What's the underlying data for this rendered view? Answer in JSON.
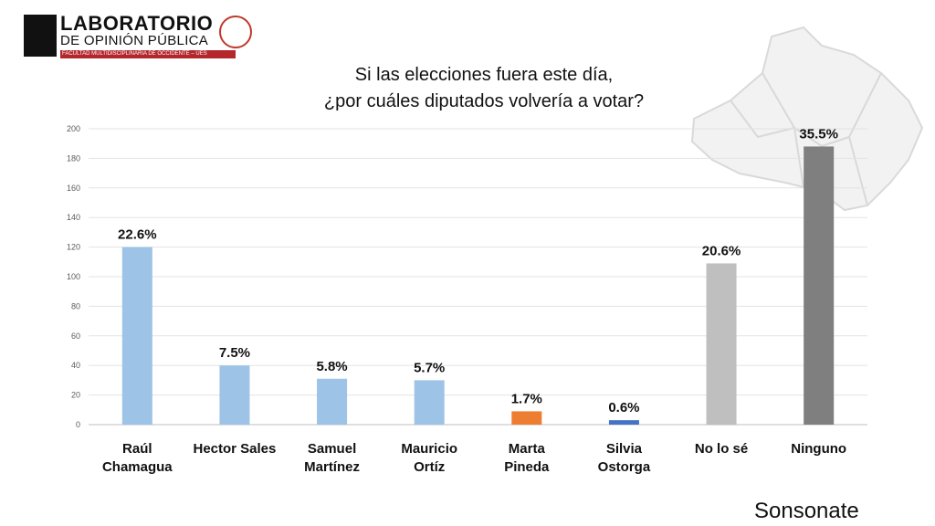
{
  "logo": {
    "title": "LABORATORIO",
    "subtitle": "DE OPINIÓN PÚBLICA",
    "caption": "FACULTAD MULTIDISCIPLINARIA DE OCCIDENTE – UES",
    "seal_icon": "university-seal-icon",
    "mark_icon": "lab-logo-icon"
  },
  "title_line1": "Si las elecciones fuera este día,",
  "title_line2": "¿por cuáles diputados volvería a votar?",
  "region_label": "Sonsonate",
  "chart_data": {
    "type": "bar",
    "ylim": [
      0,
      200
    ],
    "yticks": [
      0,
      20,
      40,
      60,
      80,
      100,
      120,
      140,
      160,
      180,
      200
    ],
    "grid": true,
    "categories": [
      [
        "Raúl",
        "Chamagua"
      ],
      [
        "Hector Sales"
      ],
      [
        "Samuel",
        "Martínez"
      ],
      [
        "Mauricio",
        "Ortíz"
      ],
      [
        "Marta",
        "Pineda"
      ],
      [
        "Silvia",
        "Ostorga"
      ],
      [
        "No lo sé"
      ],
      [
        "Ninguno"
      ]
    ],
    "values": [
      120,
      40,
      31,
      30,
      9,
      3,
      109,
      188
    ],
    "labels": [
      "22.6%",
      "7.5%",
      "5.8%",
      "5.7%",
      "1.7%",
      "0.6%",
      "20.6%",
      "35.5%"
    ],
    "colors": [
      "#9dc3e6",
      "#9dc3e6",
      "#9dc3e6",
      "#9dc3e6",
      "#ed7d31",
      "#4472c4",
      "#bfbfbf",
      "#7f7f7f"
    ]
  }
}
